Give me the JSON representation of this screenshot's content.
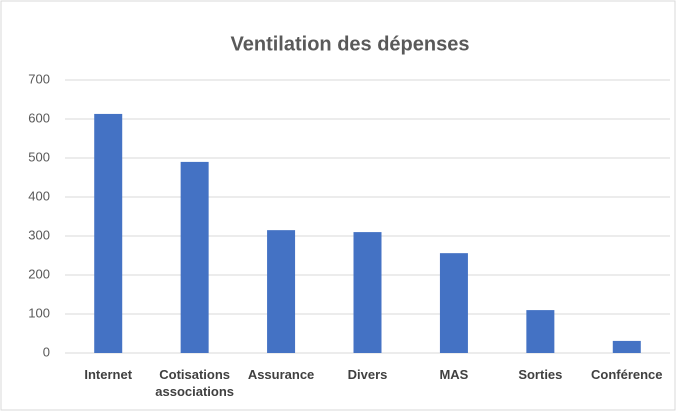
{
  "chart_data": {
    "type": "bar",
    "title": "Ventilation des dépenses",
    "categories": [
      "Internet",
      "Cotisations associations",
      "Assurance",
      "Divers",
      "MAS",
      "Sorties",
      "Conférence"
    ],
    "values": [
      613,
      490,
      315,
      310,
      256,
      110,
      31
    ],
    "color": "#4472c4",
    "ylim": [
      0,
      700
    ],
    "yticks": [
      0,
      100,
      200,
      300,
      400,
      500,
      600,
      700
    ],
    "grid": true
  }
}
